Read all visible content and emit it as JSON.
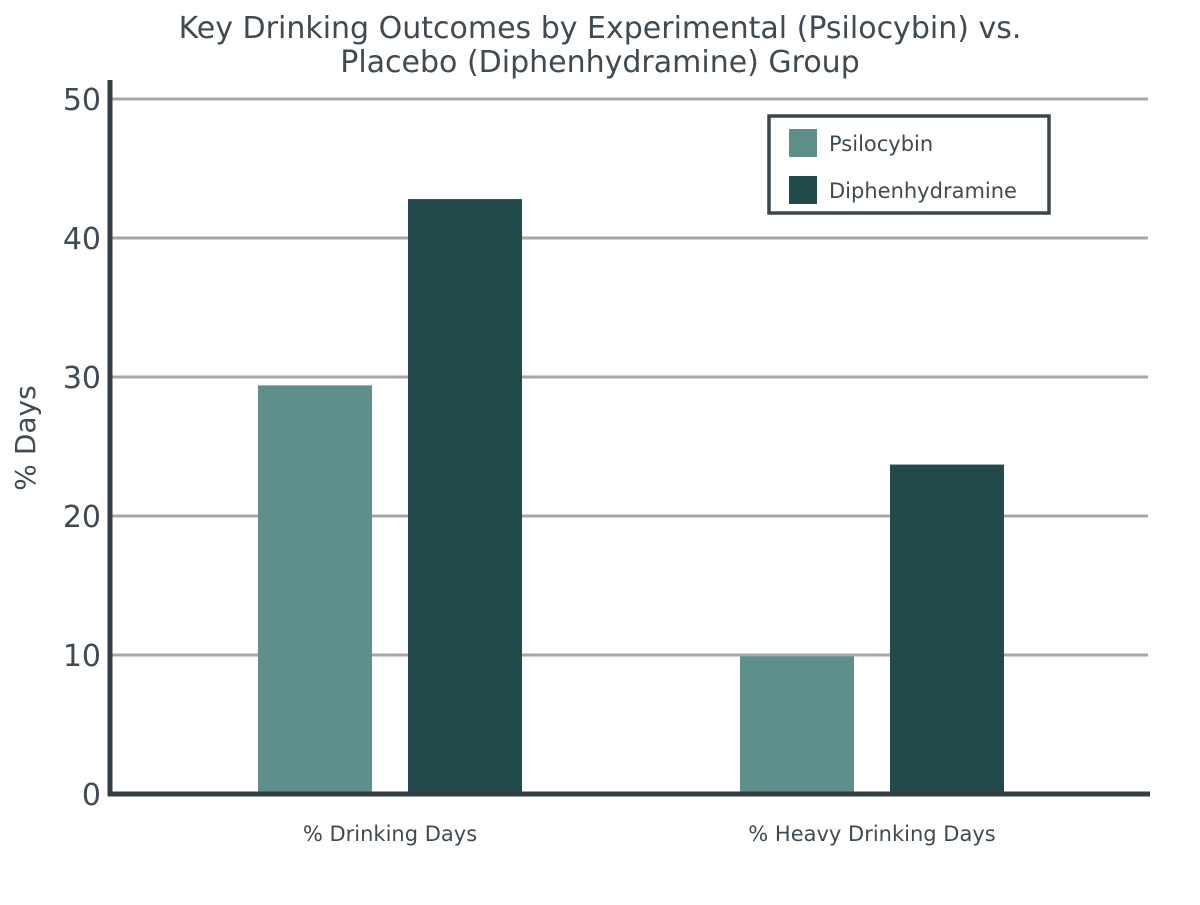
{
  "chart_data": {
    "type": "bar",
    "title": "Key Drinking Outcomes by Experimental (Psilocybin) vs. Placebo (Diphenhydramine) Group",
    "title_lines": [
      "Key Drinking Outcomes by Experimental (Psilocybin) vs.",
      "Placebo (Diphenhydramine) Group"
    ],
    "xlabel": "",
    "ylabel": "% Days",
    "ylim": [
      0,
      50
    ],
    "yticks": [
      0,
      10,
      20,
      30,
      40,
      50
    ],
    "ytick_labels": [
      "0",
      "10",
      "20",
      "30",
      "40",
      "50"
    ],
    "grid": true,
    "legend_position": "top-right",
    "categories": [
      "% Drinking Days",
      "% Heavy Drinking Days"
    ],
    "series": [
      {
        "name": "Psilocybin",
        "color": "#5f8f8a",
        "values": [
          29.4,
          9.9
        ]
      },
      {
        "name": "Diphenhydramine",
        "color": "#224a4a",
        "values": [
          42.8,
          23.7
        ]
      }
    ]
  }
}
